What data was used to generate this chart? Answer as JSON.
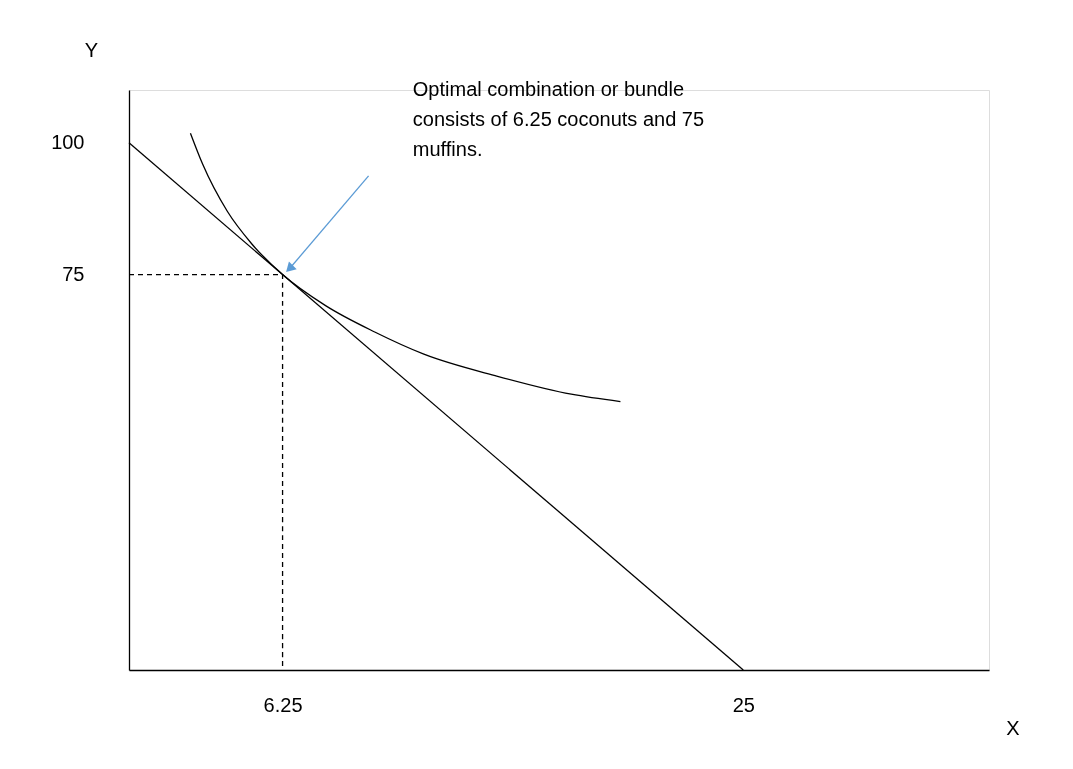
{
  "chart_data": {
    "type": "line",
    "xlabel": "X",
    "ylabel": "Y",
    "xlim": [
      0,
      35
    ],
    "ylim": [
      0,
      110
    ],
    "xticks": [
      6.25,
      25
    ],
    "yticks": [
      75,
      100
    ],
    "grid": false,
    "marker": "none",
    "series": [
      {
        "color": "#000000",
        "x": [
          0,
          25
        ],
        "values": [
          100,
          0
        ],
        "line_style": "solid"
      },
      {
        "color": "#000000",
        "x": [
          2.5,
          3,
          4,
          5,
          6.25,
          8,
          10,
          12,
          15,
          18,
          20
        ],
        "values": [
          101.8,
          95.9,
          87.0,
          80.8,
          75,
          69.1,
          64.1,
          59.9,
          55.7,
          52.3,
          50.9
        ],
        "line_style": "solid"
      },
      {
        "color": "#000000",
        "x": [
          0,
          6.25,
          6.25
        ],
        "values": [
          75,
          75,
          0
        ],
        "line_style": "dashed"
      }
    ],
    "annotations": [
      "Optimal combination or bundle\nconsists of 6.25 coconuts and 75\nmuffins."
    ]
  }
}
